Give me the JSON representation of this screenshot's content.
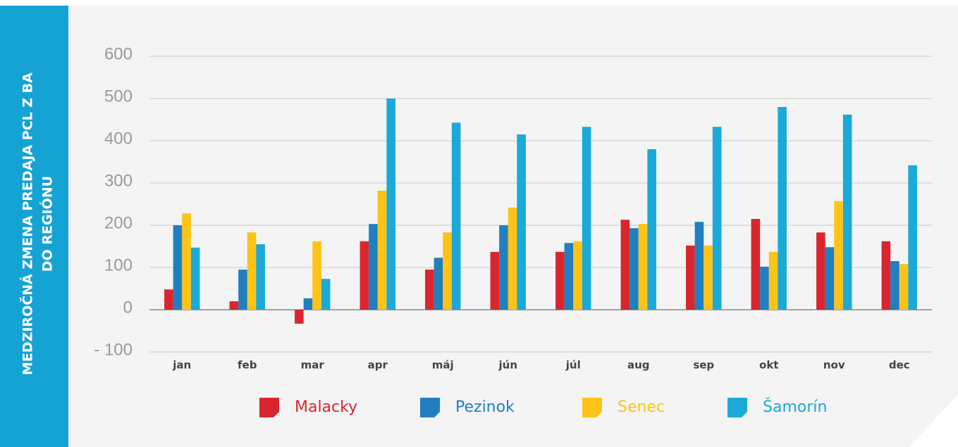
{
  "chart_data": {
    "type": "bar",
    "title_lines": [
      "MEDZIROČNÁ ZMENA PREDAJA PCL Z BA",
      "DO REGIÓNU"
    ],
    "categories": [
      "jan",
      "feb",
      "mar",
      "apr",
      "máj",
      "jún",
      "júl",
      "aug",
      "sep",
      "okt",
      "nov",
      "dec"
    ],
    "series": [
      {
        "name": "Malacky",
        "color": "#d9262e",
        "values": [
          48,
          20,
          -33,
          162,
          95,
          137,
          137,
          213,
          152,
          215,
          183,
          162
        ]
      },
      {
        "name": "Pezinok",
        "color": "#1f7fbf",
        "values": [
          200,
          95,
          27,
          203,
          123,
          200,
          158,
          193,
          208,
          102,
          148,
          115
        ]
      },
      {
        "name": "Senec",
        "color": "#fdc317",
        "values": [
          228,
          183,
          162,
          282,
          183,
          242,
          162,
          203,
          152,
          137,
          257,
          108
        ]
      },
      {
        "name": "Šamorín",
        "color": "#1ba9d8",
        "values": [
          147,
          155,
          73,
          500,
          443,
          415,
          433,
          380,
          433,
          480,
          462,
          342
        ]
      }
    ],
    "ylim": [
      -100,
      600
    ],
    "yticks": [
      {
        "value": -100,
        "label": "- 100"
      },
      0,
      100,
      200,
      300,
      400,
      500,
      600
    ],
    "grid": true
  }
}
